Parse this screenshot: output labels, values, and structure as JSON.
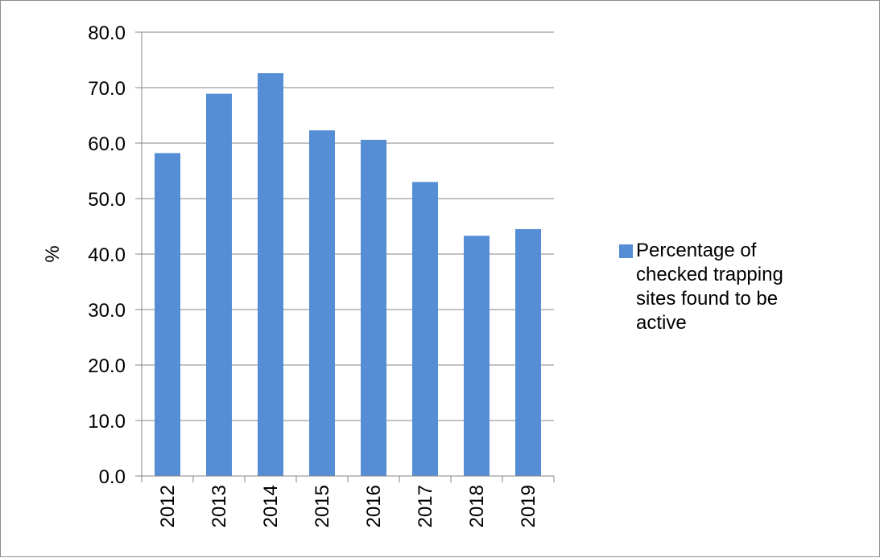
{
  "chart_data": {
    "type": "bar",
    "categories": [
      "2012",
      "2013",
      "2014",
      "2015",
      "2016",
      "2017",
      "2018",
      "2019"
    ],
    "values": [
      58.2,
      68.9,
      72.6,
      62.3,
      60.6,
      53.0,
      43.3,
      44.5
    ],
    "series": [
      {
        "name": "Percentage of checked trapping sites found to be active",
        "values": [
          58.2,
          68.9,
          72.6,
          62.3,
          60.6,
          53.0,
          43.3,
          44.5
        ],
        "color": "#558ed5"
      }
    ],
    "title": "",
    "xlabel": "",
    "ylabel": "%",
    "ylim": [
      0,
      80
    ],
    "yticks": [
      "0.0",
      "10.0",
      "20.0",
      "30.0",
      "40.0",
      "50.0",
      "60.0",
      "70.0",
      "80.0"
    ],
    "grid": true,
    "legend_position": "right"
  }
}
